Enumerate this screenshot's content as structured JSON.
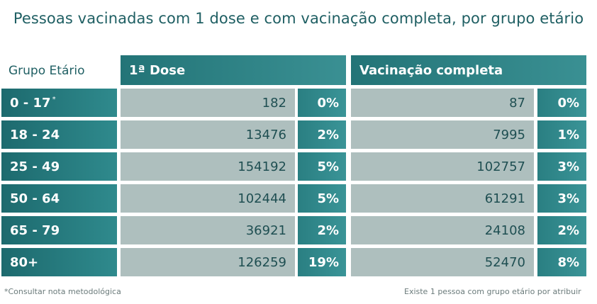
{
  "title": "Pessoas vacinadas com 1 dose e com vacinação completa, por grupo etário",
  "chart_data": {
    "type": "table",
    "columns": {
      "group": "Grupo Etário",
      "first_dose": "1ª Dose",
      "complete": "Vacinação completa"
    },
    "rows": [
      {
        "group": "0 - 17",
        "note": "*",
        "first_dose": 182,
        "first_dose_pct": "0%",
        "complete": 87,
        "complete_pct": "0%"
      },
      {
        "group": "18 - 24",
        "note": "",
        "first_dose": 13476,
        "first_dose_pct": "2%",
        "complete": 7995,
        "complete_pct": "1%"
      },
      {
        "group": "25 - 49",
        "note": "",
        "first_dose": 154192,
        "first_dose_pct": "5%",
        "complete": 102757,
        "complete_pct": "3%"
      },
      {
        "group": "50 - 64",
        "note": "",
        "first_dose": 102444,
        "first_dose_pct": "5%",
        "complete": 61291,
        "complete_pct": "3%"
      },
      {
        "group": "65 - 79",
        "note": "",
        "first_dose": 36921,
        "first_dose_pct": "2%",
        "complete": 24108,
        "complete_pct": "2%"
      },
      {
        "group": "80+",
        "note": "",
        "first_dose": 126259,
        "first_dose_pct": "19%",
        "complete": 52470,
        "complete_pct": "8%"
      }
    ]
  },
  "footnotes": {
    "left": "*Consultar nota metodológica",
    "right": "Existe 1 pessoa com grupo etário por atribuir"
  }
}
